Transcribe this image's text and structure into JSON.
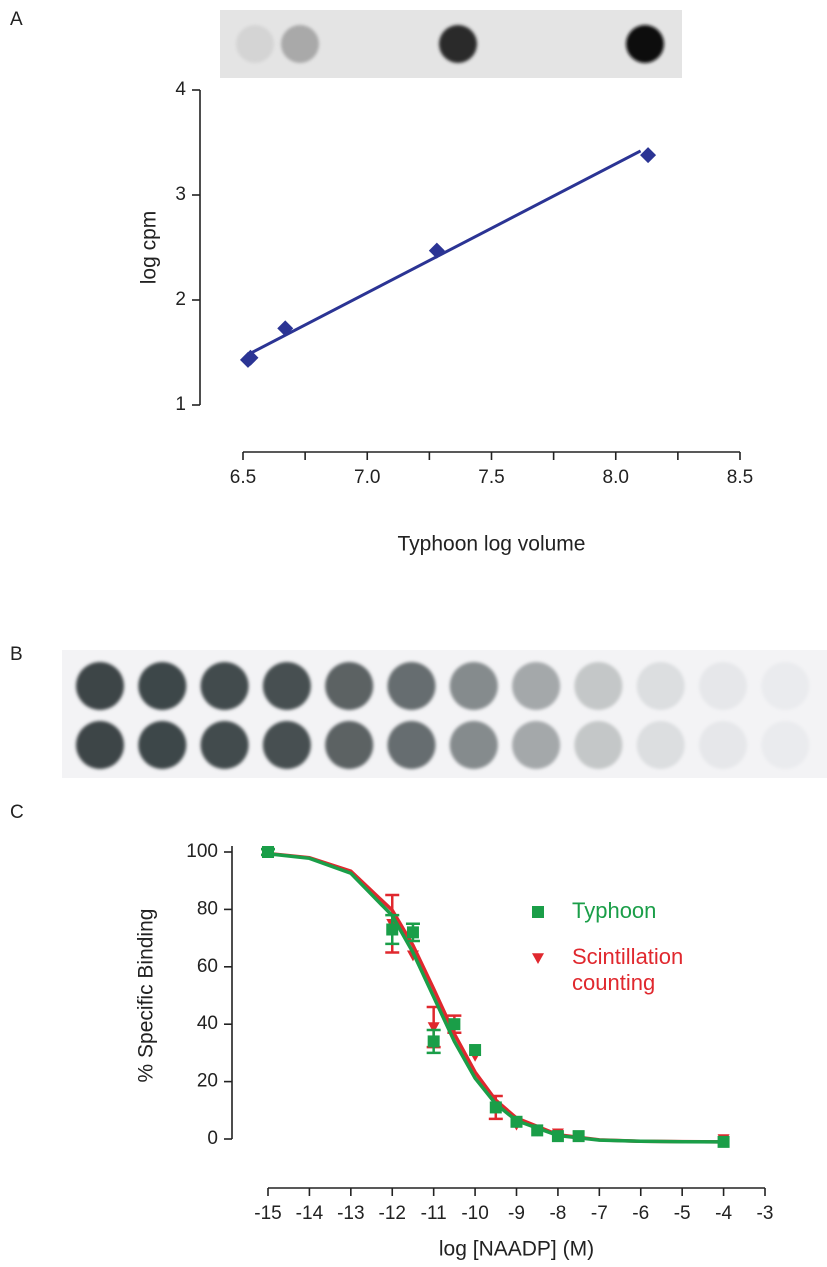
{
  "panel_labels": [
    "A",
    "B",
    "C"
  ],
  "chart_data": [
    {
      "type": "scatter",
      "xlabel": "Typhoon log volume",
      "ylabel": "log cpm",
      "xlim": [
        6.5,
        8.5
      ],
      "ylim": [
        1,
        4
      ],
      "xticks": [
        6.5,
        {
          "value": 7,
          "label": "7.0"
        },
        7.5,
        {
          "value": 8,
          "label": "8.0"
        },
        8.5
      ],
      "xticks_minor": [
        6.75,
        7.25,
        7.75,
        8.25
      ],
      "yticks": [
        1,
        2,
        3,
        4
      ],
      "series": [
        {
          "color": "#2b3494",
          "marker": "diamond",
          "x": [
            6.52,
            6.53,
            6.67,
            7.28,
            8.13
          ],
          "values": [
            1.43,
            1.45,
            1.73,
            2.47,
            3.38
          ],
          "fit": {
            "x": [
              6.52,
              8.1
            ],
            "values": [
              1.48,
              3.42
            ]
          }
        }
      ]
    },
    {
      "type": "scatter",
      "xlabel": "log [NAADP] (M)",
      "ylabel": "% Specific Binding",
      "xlim": [
        -15,
        -3
      ],
      "ylim": [
        0,
        100
      ],
      "xticks": [
        -15,
        -14,
        -13,
        -12,
        -11,
        -10,
        -9,
        -8,
        -7,
        -6,
        -5,
        -4,
        -3
      ],
      "yticks": [
        0,
        20,
        40,
        60,
        80,
        100
      ],
      "legend": "upper right",
      "series": [
        {
          "name": "Scintillation counting",
          "color": "#e0282e",
          "marker": "triangle",
          "x": [
            -15,
            -12,
            -11.5,
            -11,
            -10.5,
            -10,
            -9.5,
            -9,
            -8.5,
            -8,
            -7.5,
            -4
          ],
          "values": [
            100,
            75,
            64,
            39,
            40,
            29,
            11,
            5,
            3,
            2,
            1,
            0
          ],
          "errors": [
            1,
            10,
            null,
            7,
            3,
            null,
            4,
            null,
            null,
            null,
            null,
            null
          ],
          "fit": {
            "x": [
              -15,
              -14,
              -13,
              -12,
              -11.5,
              -11,
              -10.5,
              -10,
              -9.5,
              -9,
              -8,
              -7,
              -6,
              -5,
              -4
            ],
            "values": [
              99.5,
              98.0,
              93.3,
              79.7,
              67.5,
              52.3,
              36.6,
              23.3,
              13.5,
              7.3,
              1.5,
              -0.3,
              -0.8,
              -0.9,
              -1.0
            ]
          }
        },
        {
          "name": "Typhoon",
          "color": "#1a9e48",
          "marker": "square",
          "x": [
            -15,
            -12,
            -11.5,
            -11,
            -10.5,
            -10,
            -9.5,
            -9,
            -8.5,
            -8,
            -7.5,
            -4
          ],
          "values": [
            100,
            73,
            72,
            34,
            40,
            31,
            11,
            6,
            3,
            1,
            1,
            -1
          ],
          "errors": [
            1,
            5,
            3,
            4,
            null,
            null,
            null,
            null,
            null,
            null,
            null,
            null
          ],
          "fit": {
            "x": [
              -15,
              -14,
              -13,
              -12,
              -11.5,
              -11,
              -10.5,
              -10,
              -9.5,
              -9,
              -8,
              -7,
              -6,
              -5,
              -4
            ],
            "values": [
              99.4,
              97.8,
              92.6,
              77.8,
              65.0,
              49.5,
              34.0,
              21.2,
              12.2,
              6.4,
              1.2,
              -0.4,
              -0.8,
              -0.95,
              -1.0
            ]
          }
        }
      ]
    }
  ]
}
